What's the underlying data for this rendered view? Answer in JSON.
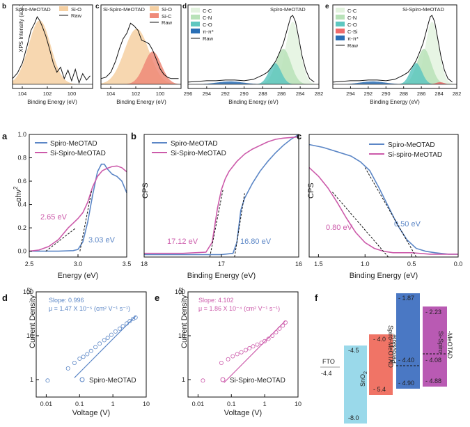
{
  "colors": {
    "spiro": "#5b86c6",
    "si_spiro": "#cc5aaa",
    "si_o_fill": "#f6d0a2",
    "si_c_fill": "#ef8a78",
    "cc_fill": "#e3f3df",
    "cn_fill": "#b8e2b8",
    "co_fill": "#5ec7c0",
    "pipi_fill": "#2a6fb5",
    "csi_fill": "#ef6b6b",
    "sno2_fill": "#9ad9ea",
    "perov_fill": "#f07466",
    "spiro_box_fill": "#4a78c4",
    "sispiro_box_fill": "#b95ab3"
  },
  "chart_data": [
    {
      "panel": "b",
      "type": "area",
      "inset_label": "Spiro-MeOTAD",
      "xlabel": "Binding Energy (eV)",
      "ylabel": "XPS Intensity (a.u.)",
      "xlim": [
        105,
        98.5
      ],
      "xticks": [
        104,
        102,
        100
      ],
      "legend": [
        "Si-O",
        "Raw"
      ],
      "series": [
        {
          "name": "Si-O",
          "center": 102.8,
          "width": 0.9,
          "height": 0.9
        },
        {
          "name": "Raw",
          "x": [
            105,
            104.6,
            104.2,
            103.8,
            103.5,
            103.2,
            103.0,
            102.8,
            102.6,
            102.3,
            102.0,
            101.7,
            101.4,
            101.1,
            100.8,
            100.5,
            100.2,
            99.9,
            99.6,
            99.3,
            99.0,
            98.7
          ],
          "y": [
            0.08,
            0.16,
            0.3,
            0.55,
            0.76,
            0.86,
            0.95,
            0.9,
            0.82,
            0.68,
            0.5,
            0.3,
            0.17,
            0.24,
            0.08,
            0.2,
            0.05,
            0.21,
            0.02,
            0.15,
            0.06,
            0.12
          ]
        }
      ]
    },
    {
      "panel": "c",
      "type": "area",
      "inset_label": "Si-Spiro-MeOTAD",
      "xlabel": "Binding Energy (eV)",
      "xlim": [
        105,
        98.5
      ],
      "xticks": [
        104,
        102,
        100
      ],
      "legend": [
        "Si-O",
        "Si-C",
        "Raw"
      ],
      "series": [
        {
          "name": "Si-O",
          "center": 102.1,
          "width": 1.0,
          "height": 0.78
        },
        {
          "name": "Si-C",
          "center": 100.8,
          "width": 0.7,
          "height": 0.46
        },
        {
          "name": "Raw",
          "x": [
            105,
            104.6,
            104.2,
            103.8,
            103.5,
            103.2,
            102.9,
            102.6,
            102.3,
            102.0,
            101.7,
            101.4,
            101.1,
            100.8,
            100.5,
            100.2,
            99.9,
            99.6,
            99.3,
            99.0,
            98.7
          ],
          "y": [
            0.08,
            0.1,
            0.17,
            0.33,
            0.5,
            0.64,
            0.72,
            0.86,
            0.82,
            0.76,
            0.62,
            0.6,
            0.57,
            0.48,
            0.35,
            0.22,
            0.14,
            0.1,
            0.08,
            0.08,
            0.08
          ]
        }
      ]
    },
    {
      "panel": "d",
      "type": "area",
      "inset_label": "Spiro-MeOTAD",
      "xlabel": "Binding Energy (eV)",
      "xlim": [
        296,
        282
      ],
      "xticks": [
        296,
        294,
        292,
        290,
        288,
        286,
        284,
        282
      ],
      "legend": [
        "C-C",
        "C-N",
        "C-O",
        "π-π*",
        "Raw"
      ],
      "series": [
        {
          "name": "C-C",
          "center": 284.8,
          "width": 0.75,
          "height": 0.88
        },
        {
          "name": "C-N",
          "center": 285.8,
          "width": 0.8,
          "height": 0.5
        },
        {
          "name": "C-O",
          "center": 286.7,
          "width": 0.65,
          "height": 0.3
        },
        {
          "name": "π-π*",
          "center": 291.5,
          "width": 1.4,
          "height": 0.04
        },
        {
          "name": "Raw",
          "x": [
            296,
            295,
            294,
            293,
            292,
            291,
            290,
            289,
            288.5,
            288,
            287.5,
            287,
            286.6,
            286.2,
            285.8,
            285.5,
            285.2,
            285.0,
            284.8,
            284.5,
            284.2,
            283.8,
            283.4,
            283.0,
            282.5
          ],
          "y": [
            0.03,
            0.04,
            0.05,
            0.05,
            0.06,
            0.06,
            0.05,
            0.07,
            0.1,
            0.13,
            0.17,
            0.25,
            0.33,
            0.45,
            0.58,
            0.72,
            0.86,
            0.95,
            0.97,
            0.88,
            0.68,
            0.4,
            0.2,
            0.08,
            0.03
          ]
        }
      ]
    },
    {
      "panel": "e",
      "type": "area",
      "inset_label": "Si-Spiro-MeOTAD",
      "xlabel": "Binding Energy (eV)",
      "xlim": [
        296,
        282
      ],
      "xticks": [
        294,
        292,
        290,
        288,
        286,
        284,
        282
      ],
      "legend": [
        "C-C",
        "C-N",
        "C-O",
        "C-Si",
        "π-π*",
        "Raw"
      ],
      "series": [
        {
          "name": "C-C",
          "center": 284.8,
          "width": 0.75,
          "height": 0.88
        },
        {
          "name": "C-N",
          "center": 285.7,
          "width": 0.8,
          "height": 0.5
        },
        {
          "name": "C-O",
          "center": 286.6,
          "width": 0.65,
          "height": 0.3
        },
        {
          "name": "C-Si",
          "center": 283.9,
          "width": 0.45,
          "height": 0.03
        },
        {
          "name": "π-π*",
          "center": 291.5,
          "width": 1.4,
          "height": 0.04
        },
        {
          "name": "Raw",
          "x": [
            296,
            295,
            294,
            293,
            292,
            291,
            290,
            289,
            288.5,
            288,
            287.5,
            287,
            286.6,
            286.2,
            285.8,
            285.5,
            285.2,
            285.0,
            284.8,
            284.5,
            284.2,
            283.8,
            283.4,
            283.0,
            282.5
          ],
          "y": [
            0.03,
            0.04,
            0.05,
            0.05,
            0.06,
            0.06,
            0.05,
            0.07,
            0.1,
            0.13,
            0.17,
            0.25,
            0.33,
            0.45,
            0.58,
            0.72,
            0.86,
            0.95,
            0.97,
            0.88,
            0.68,
            0.4,
            0.2,
            0.08,
            0.03
          ]
        }
      ]
    },
    {
      "panel": "a",
      "type": "line",
      "xlabel": "Energy (eV)",
      "ylabel": "αhν²",
      "xlim": [
        2.5,
        3.5
      ],
      "ylim": [
        -0.05,
        1.0
      ],
      "xticks": [
        2.5,
        3.0,
        3.5
      ],
      "yticks": [
        0.0,
        0.2,
        0.4,
        0.6,
        0.8,
        1.0
      ],
      "series": [
        {
          "name": "Spiro-MeOTAD",
          "x": [
            2.5,
            2.8,
            2.95,
            3.0,
            3.05,
            3.1,
            3.15,
            3.2,
            3.24,
            3.27,
            3.3,
            3.35,
            3.4,
            3.45,
            3.5
          ],
          "y": [
            0.0,
            0.0,
            0.005,
            0.015,
            0.08,
            0.25,
            0.48,
            0.68,
            0.745,
            0.745,
            0.705,
            0.66,
            0.64,
            0.6,
            0.5
          ]
        },
        {
          "name": "Si-Spiro-MeOTAD",
          "x": [
            2.5,
            2.6,
            2.7,
            2.8,
            2.85,
            2.9,
            2.95,
            3.0,
            3.05,
            3.1,
            3.15,
            3.2,
            3.25,
            3.3,
            3.35,
            3.4,
            3.45,
            3.5
          ],
          "y": [
            0.0,
            0.01,
            0.04,
            0.1,
            0.15,
            0.2,
            0.24,
            0.28,
            0.33,
            0.42,
            0.55,
            0.64,
            0.69,
            0.71,
            0.725,
            0.73,
            0.715,
            0.68
          ]
        }
      ],
      "annotations": [
        "2.65 eV",
        "3.03 eV"
      ]
    },
    {
      "panel": "b",
      "type": "line",
      "xlabel": "Binding Energy (eV)",
      "ylabel": "CPS",
      "xlim": [
        18,
        16
      ],
      "xticks": [
        18,
        17,
        16
      ],
      "series": [
        {
          "name": "Spiro-MeOTAD",
          "x": [
            18,
            17.5,
            17.0,
            16.85,
            16.8,
            16.75,
            16.7,
            16.6,
            16.5,
            16.4,
            16.3,
            16.2,
            16.1,
            16.0
          ],
          "y": [
            0.02,
            0.02,
            0.02,
            0.03,
            0.12,
            0.38,
            0.48,
            0.6,
            0.7,
            0.78,
            0.85,
            0.91,
            0.96,
            1.0
          ]
        },
        {
          "name": "Si-Spiro-MeOTAD",
          "x": [
            18,
            17.5,
            17.2,
            17.12,
            17.05,
            17.0,
            16.95,
            16.9,
            16.8,
            16.7,
            16.6,
            16.5,
            16.4,
            16.3,
            16.2,
            16.0
          ],
          "y": [
            0.03,
            0.03,
            0.04,
            0.12,
            0.4,
            0.55,
            0.64,
            0.7,
            0.78,
            0.84,
            0.88,
            0.91,
            0.94,
            0.96,
            0.97,
            0.98
          ]
        }
      ],
      "annotations": [
        "17.12 eV",
        "16.80 eV"
      ]
    },
    {
      "panel": "c",
      "type": "line",
      "xlabel": "Binding Energy (eV)",
      "ylabel": "CPS",
      "xlim": [
        1.6,
        0.0
      ],
      "xticks": [
        1.5,
        1.0,
        0.5,
        0.0
      ],
      "series": [
        {
          "name": "Spiro-MeOTAD",
          "x": [
            1.6,
            1.45,
            1.3,
            1.15,
            1.05,
            0.95,
            0.85,
            0.75,
            0.65,
            0.55,
            0.45,
            0.35,
            0.25,
            0.1,
            0.0
          ],
          "y": [
            0.78,
            0.76,
            0.73,
            0.7,
            0.66,
            0.6,
            0.48,
            0.35,
            0.22,
            0.12,
            0.06,
            0.04,
            0.03,
            0.02,
            0.02
          ]
        },
        {
          "name": "Si-spiro-MeOTAD",
          "x": [
            1.6,
            1.5,
            1.4,
            1.3,
            1.2,
            1.1,
            1.0,
            0.9,
            0.8,
            0.7,
            0.6,
            0.5,
            0.3,
            0.1,
            0.0
          ],
          "y": [
            0.62,
            0.56,
            0.48,
            0.38,
            0.27,
            0.17,
            0.1,
            0.06,
            0.04,
            0.03,
            0.03,
            0.03,
            0.02,
            0.02,
            0.02
          ]
        }
      ],
      "annotations": [
        "0.80 eV",
        "0.50 eV"
      ]
    },
    {
      "panel": "d",
      "type": "scatter",
      "xlabel": "Voltage (V)",
      "ylabel": "Current Density^1/2",
      "xscale": "log",
      "yscale": "log",
      "xlim": [
        0.005,
        10
      ],
      "ylim": [
        0.4,
        100
      ],
      "xticks": [
        "0.01",
        "0.1",
        "1",
        "10"
      ],
      "yticks": [
        "1",
        "10",
        "100"
      ],
      "slope_text": "Slope: 0.996",
      "mu_text": "μ = 1.47 X 10⁻⁵ (cm² V⁻¹ s⁻¹)",
      "series": [
        {
          "name": "Spiro-MeOTAD",
          "x": [
            0.011,
            0.045,
            0.07,
            0.1,
            0.13,
            0.17,
            0.22,
            0.3,
            0.4,
            0.55,
            0.7,
            0.9,
            1.2,
            1.6,
            2.0,
            2.6,
            3.2,
            4.0,
            4.8
          ],
          "y": [
            0.95,
            1.8,
            2.4,
            3.0,
            3.3,
            3.8,
            4.5,
            5.5,
            6.6,
            7.9,
            9.0,
            10.5,
            12.5,
            14.5,
            16.5,
            19.0,
            21.5,
            24.0,
            26.0
          ]
        }
      ],
      "fit": {
        "x": [
          0.07,
          4.8
        ],
        "y": [
          1.1,
          28
        ]
      }
    },
    {
      "panel": "e",
      "type": "scatter",
      "xlabel": "Voltage (V)",
      "ylabel": "Current Density^1/2",
      "xscale": "log",
      "yscale": "log",
      "xlim": [
        0.005,
        10
      ],
      "ylim": [
        0.4,
        100
      ],
      "xticks": [
        "0.01",
        "0.1",
        "1",
        "10"
      ],
      "yticks": [
        "1",
        "10",
        "100"
      ],
      "slope_text": "Slope: 4.102",
      "mu_text": "μ = 1.86 X 10⁻⁴ (cm² V⁻¹ s⁻¹)",
      "series": [
        {
          "name": "Si-Spiro-MeOTAD",
          "x": [
            0.014,
            0.05,
            0.08,
            0.11,
            0.15,
            0.2,
            0.27,
            0.35,
            0.45,
            0.6,
            0.8,
            1.0,
            1.3,
            1.7,
            2.2,
            2.8,
            3.5,
            4.2
          ],
          "y": [
            0.95,
            2.4,
            2.9,
            3.4,
            3.8,
            4.2,
            4.7,
            5.2,
            5.7,
            6.3,
            6.9,
            7.5,
            8.5,
            10.0,
            12.0,
            14.5,
            17.0,
            20.0
          ]
        }
      ],
      "fit": {
        "x": [
          0.06,
          4.2
        ],
        "y": [
          0.85,
          22
        ]
      }
    },
    {
      "panel": "f",
      "type": "bar",
      "levels": {
        "fto": {
          "label": "FTO",
          "value": "-4.4"
        },
        "sno2": {
          "label": "SnO₂",
          "top": "-4.5",
          "bottom": "-8.0"
        },
        "perovskite": {
          "label": "Perovskite",
          "top": "- 4.0",
          "bottom": "- 5.4"
        },
        "spiro": {
          "label": "Spiro-MeOTAD",
          "top": "- 1.87",
          "mid": "- 4.40",
          "bottom": "- 4.90"
        },
        "si_spiro": {
          "label": "Si-Spiro -MeOTAD",
          "top": "- 2.23",
          "mid": "- 4.08",
          "bottom": "- 4.88"
        }
      }
    }
  ],
  "text": {
    "b_top": {
      "label": "b",
      "inset": "Spiro-MeOTAD",
      "ylabel": "XPS Intensity (a.u.)",
      "xlabel": "Binding Energy (eV)",
      "leg1": "Si-O",
      "leg2": "Raw",
      "ticks": [
        "104",
        "102",
        "100"
      ]
    },
    "c_top": {
      "label": "c",
      "inset": "Si-Spiro-MeOTAD",
      "xlabel": "Binding Energy (eV)",
      "leg1": "Si-O",
      "leg2": "Si-C",
      "leg3": "Raw",
      "ticks": [
        "104",
        "102",
        "100"
      ]
    },
    "d_top": {
      "label": "d",
      "inset": "Spiro-MeOTAD",
      "xlabel": "Binding Energy (eV)",
      "leg": [
        "C-C",
        "C-N",
        "C-O",
        "π-π*",
        "Raw"
      ],
      "ticks": [
        "296",
        "294",
        "292",
        "290",
        "288",
        "286",
        "284",
        "282"
      ]
    },
    "e_top": {
      "label": "e",
      "inset": "Si-Spiro-MeOTAD",
      "xlabel": "Binding Energy (eV)",
      "leg": [
        "C-C",
        "C-N",
        "C-O",
        "C-Si",
        "π-π*",
        "Raw"
      ],
      "ticks": [
        "294",
        "292",
        "290",
        "288",
        "286",
        "284",
        "282"
      ]
    },
    "a_mid": {
      "label": "a",
      "ylabel": "αhν",
      "ysup": "2",
      "xlabel": "Energy (eV)",
      "leg1": "Spiro-MeOTAD",
      "leg2": "Si-Spiro-MeOTAD",
      "ann1": "2.65 eV",
      "ann2": "3.03 eV",
      "xticks": [
        "2.5",
        "3.0",
        "3.5"
      ],
      "yticks": [
        "0.0",
        "0.2",
        "0.4",
        "0.6",
        "0.8",
        "1.0"
      ]
    },
    "b_mid": {
      "label": "b",
      "ylabel": "CPS",
      "xlabel": "Binding Energy (eV)",
      "leg1": "Spiro-MeOTAD",
      "leg2": "Si-Spiro-MeOTAD",
      "ann1": "17.12 eV",
      "ann2": "16.80 eV",
      "xticks": [
        "18",
        "17",
        "16"
      ]
    },
    "c_mid": {
      "label": "c",
      "ylabel": "CPS",
      "xlabel": "Binding Energy (eV)",
      "leg1": "Spiro-MeOTAD",
      "leg2": "Si-spiro-MeOTAD",
      "ann1": "0.80 eV",
      "ann2": "0.50 eV",
      "xticks": [
        "1.5",
        "1.0",
        "0.5",
        "0.0"
      ]
    },
    "d_bot": {
      "label": "d",
      "ylabel": "Current Density",
      "ysup": "1/2",
      "xlabel": "Voltage (V)",
      "slope": "Slope: 0.996",
      "mu": "μ = 1.47 X 10⁻⁵ (cm² V⁻¹ s⁻¹)",
      "legend": "Spiro-MeOTAD",
      "xticks": [
        "0.01",
        "0.1",
        "1",
        "10"
      ],
      "yticks": [
        "1",
        "10",
        "100"
      ]
    },
    "e_bot": {
      "label": "e",
      "ylabel": "Current Density",
      "ysup": "1/2",
      "xlabel": "Voltage (V)",
      "slope": "Slope: 4.102",
      "mu": "μ = 1.86 X 10⁻⁴ (cm² V⁻¹ s⁻¹)",
      "legend": "Si-Spiro-MeOTAD",
      "xticks": [
        "0.01",
        "0.1",
        "1",
        "10"
      ],
      "yticks": [
        "1",
        "10",
        "100"
      ]
    },
    "f_bot": {
      "label": "f",
      "fto": "FTO",
      "fto_val": "-4.4",
      "sno2": "SnO",
      "sno2_sub": "2",
      "sno2_top": "-4.5",
      "sno2_bot": "-8.0",
      "perov": "Perovskite",
      "perov_top": "- 4.0",
      "perov_bot": "- 5.4",
      "spiro": "Spiro-MeOTAD",
      "spiro_top": "- 1.87",
      "spiro_mid": "- 4.40",
      "spiro_bot": "- 4.90",
      "sis1": "Si-Spiro",
      "sis2": "-MeOTAD",
      "sis_top": "- 2.23",
      "sis_mid": "- 4.08",
      "sis_bot": "- 4.88"
    }
  }
}
